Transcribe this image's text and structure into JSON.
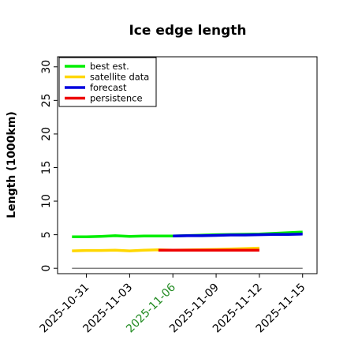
{
  "chart_data": {
    "type": "line",
    "title": "Ice edge length",
    "ylabel": "Length (1000km)",
    "xlabel": "",
    "ylim": [
      -0.8,
      31.5
    ],
    "xlim": [
      "2025-10-29",
      "2025-11-16"
    ],
    "yticks": [
      0,
      5,
      10,
      15,
      20,
      25,
      30
    ],
    "xticks": [
      "2025-10-31",
      "2025-11-03",
      "2025-11-06",
      "2025-11-09",
      "2025-11-12",
      "2025-11-15"
    ],
    "xtick_colors": [
      "#000000",
      "#000000",
      "#228b22",
      "#000000",
      "#000000",
      "#000000"
    ],
    "legend_position": "top-left",
    "grid": false,
    "reference_line": {
      "y": 0,
      "x_start": "2025-10-30",
      "x_end": "2025-11-15",
      "color": "#808080"
    },
    "series": [
      {
        "name": "best est.",
        "color": "#00ee00",
        "x": [
          "2025-10-30",
          "2025-10-31",
          "2025-11-01",
          "2025-11-02",
          "2025-11-03",
          "2025-11-04",
          "2025-11-05",
          "2025-11-06",
          "2025-11-09",
          "2025-11-12",
          "2025-11-15"
        ],
        "y": [
          4.7,
          4.7,
          4.75,
          4.85,
          4.75,
          4.8,
          4.8,
          4.8,
          5.0,
          5.1,
          5.4
        ]
      },
      {
        "name": "satellite data",
        "color": "#ffd700",
        "x": [
          "2025-10-30",
          "2025-10-31",
          "2025-11-01",
          "2025-11-02",
          "2025-11-03",
          "2025-11-04",
          "2025-11-05",
          "2025-11-06",
          "2025-11-09",
          "2025-11-12"
        ],
        "y": [
          2.6,
          2.65,
          2.65,
          2.7,
          2.6,
          2.7,
          2.75,
          2.7,
          2.8,
          3.0
        ]
      },
      {
        "name": "forecast",
        "color": "#0000dd",
        "x": [
          "2025-11-06",
          "2025-11-07",
          "2025-11-08",
          "2025-11-09",
          "2025-11-10",
          "2025-11-11",
          "2025-11-12",
          "2025-11-13",
          "2025-11-14",
          "2025-11-15"
        ],
        "y": [
          4.8,
          4.85,
          4.85,
          4.9,
          4.95,
          4.95,
          5.0,
          5.05,
          5.05,
          5.1
        ]
      },
      {
        "name": "persistence",
        "color": "#ee0000",
        "x": [
          "2025-11-05",
          "2025-11-06",
          "2025-11-09",
          "2025-11-12"
        ],
        "y": [
          2.7,
          2.7,
          2.7,
          2.7
        ]
      }
    ]
  }
}
